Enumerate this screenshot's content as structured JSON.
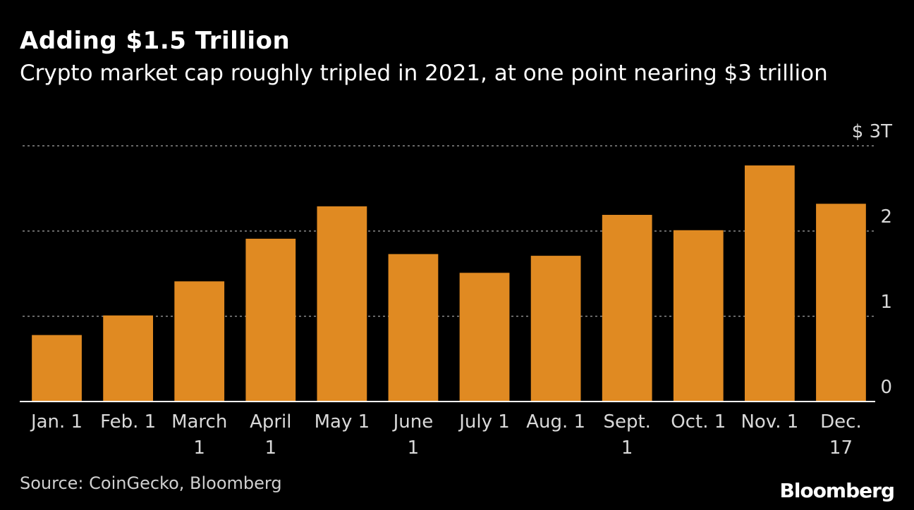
{
  "chart_data": {
    "type": "bar",
    "title": "Adding $1.5 Trillion",
    "subtitle": "Crypto market cap roughly tripled in 2021, at one point nearing $3 trillion",
    "categories": [
      [
        "Jan. 1"
      ],
      [
        "Feb. 1"
      ],
      [
        "March",
        "1"
      ],
      [
        "April",
        "1"
      ],
      [
        "May 1"
      ],
      [
        "June",
        "1"
      ],
      [
        "July 1"
      ],
      [
        "Aug. 1"
      ],
      [
        "Sept.",
        "1"
      ],
      [
        "Oct. 1"
      ],
      [
        "Nov. 1"
      ],
      [
        "Dec.",
        "17"
      ]
    ],
    "values": [
      0.78,
      1.01,
      1.41,
      1.91,
      2.29,
      1.73,
      1.51,
      1.71,
      2.19,
      2.01,
      2.77,
      2.32
    ],
    "ylim": [
      0,
      3
    ],
    "yticks": [
      0,
      1,
      2,
      3
    ],
    "ytick_labels": [
      "0",
      "1",
      "2",
      "$ 3T"
    ],
    "grid": true,
    "bar_color": "#e08a22"
  },
  "source": "Source: CoinGecko, Bloomberg",
  "brand": "Bloomberg"
}
